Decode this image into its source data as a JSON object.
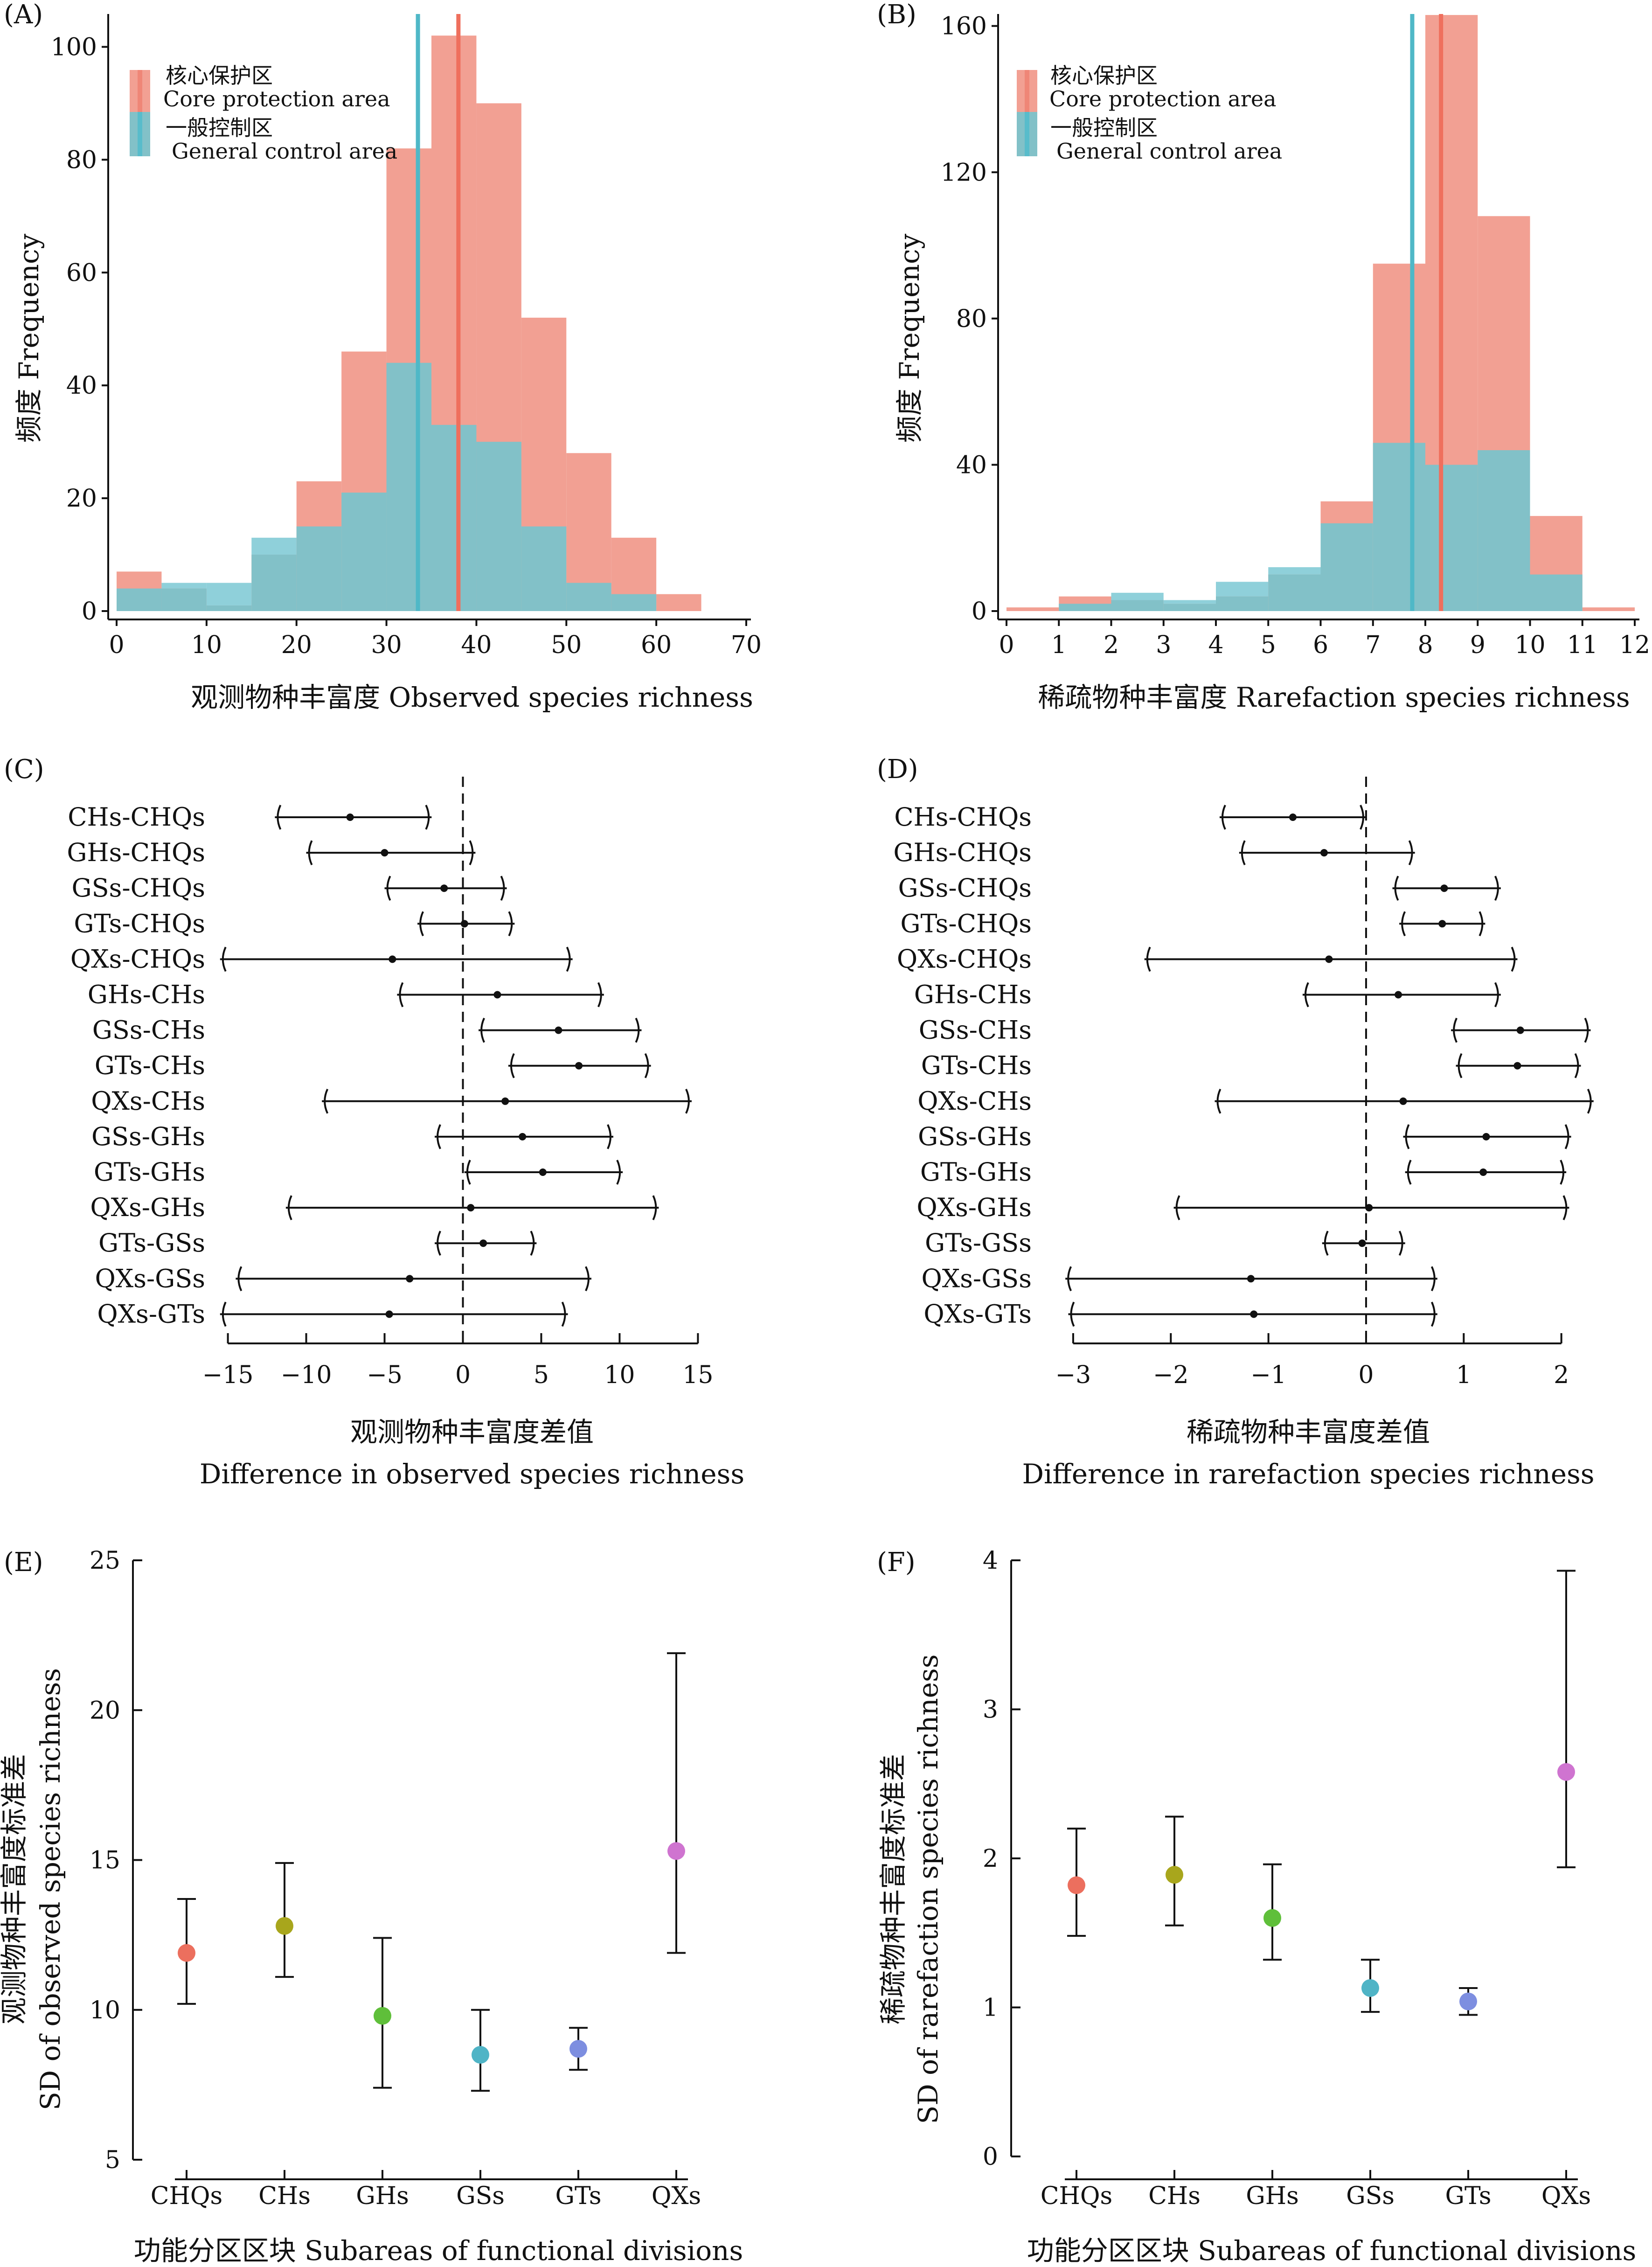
{
  "chart_data": [
    {
      "id": "A",
      "panel_label": "(A)",
      "type": "histogram",
      "xlabel": "观测物种丰富度 Observed species richness",
      "ylabel": "频度 Frequency",
      "xlim": [
        0,
        70
      ],
      "ylim": [
        0,
        105
      ],
      "xticks": [
        "0",
        "10",
        "20",
        "30",
        "40",
        "50",
        "60",
        "70"
      ],
      "yticks": [
        "0",
        "20",
        "40",
        "60",
        "80",
        "100"
      ],
      "bin_edges": [
        0,
        5,
        10,
        15,
        20,
        25,
        30,
        35,
        40,
        45,
        50,
        55,
        60,
        65
      ],
      "legend": {
        "placement": "top-left",
        "entries": [
          {
            "label_cn": "核心保护区",
            "label_en": "Core protection area",
            "color": "#ef8677"
          },
          {
            "label_cn": "一般控制区",
            "label_en": "General control area",
            "color": "#58bccb"
          }
        ]
      },
      "series": [
        {
          "name": "核心保护区 Core protection area",
          "color": "#f2a093",
          "counts": [
            7,
            4,
            1,
            10,
            23,
            46,
            82,
            102,
            90,
            52,
            28,
            13,
            3
          ],
          "mean": 38
        },
        {
          "name": "一般控制区 General control area",
          "color": "#82c1c8",
          "counts": [
            4,
            5,
            5,
            13,
            15,
            21,
            44,
            33,
            30,
            15,
            5,
            3,
            0
          ],
          "mean": 33.5
        }
      ]
    },
    {
      "id": "B",
      "panel_label": "(B)",
      "type": "histogram",
      "xlabel": "稀疏物种丰富度 Rarefaction species richness",
      "ylabel": "频度 Frequency",
      "xlim": [
        0,
        12
      ],
      "ylim": [
        0,
        162
      ],
      "xticks": [
        "0",
        "1",
        "2",
        "3",
        "4",
        "5",
        "6",
        "7",
        "8",
        "9",
        "10",
        "11",
        "12"
      ],
      "yticks": [
        "0",
        "40",
        "80",
        "120",
        "160"
      ],
      "bin_edges": [
        0,
        1,
        2,
        3,
        4,
        5,
        6,
        7,
        8,
        9,
        10,
        11,
        12
      ],
      "legend": {
        "placement": "top-left",
        "entries": [
          {
            "label_cn": "核心保护区",
            "label_en": "Core protection area",
            "color": "#ef8677"
          },
          {
            "label_cn": "一般控制区",
            "label_en": "General control area",
            "color": "#58bccb"
          }
        ]
      },
      "series": [
        {
          "name": "核心保护区 Core protection area",
          "color": "#f2a093",
          "counts": [
            1,
            4,
            3,
            2,
            4,
            10,
            30,
            95,
            163,
            108,
            26,
            1
          ],
          "mean": 8.3
        },
        {
          "name": "一般控制区 General control area",
          "color": "#82c1c8",
          "counts": [
            0,
            2,
            5,
            3,
            8,
            12,
            24,
            46,
            40,
            44,
            10,
            0
          ],
          "mean": 7.75
        }
      ]
    },
    {
      "id": "C",
      "panel_label": "(C)",
      "type": "interval",
      "xlabel_cn": "观测物种丰富度差值",
      "xlabel_en": "Difference in observed species richness",
      "xlim": [
        -16,
        16
      ],
      "xticks": [
        "−15",
        "−10",
        "−5",
        "0",
        "5",
        "10",
        "15"
      ],
      "tick_values": [
        -15,
        -10,
        -5,
        0,
        5,
        10,
        15
      ],
      "rows": [
        {
          "label": "CHs-CHQs",
          "est": -7.2,
          "lo": -12,
          "hi": -2
        },
        {
          "label": "GHs-CHQs",
          "est": -5,
          "lo": -10,
          "hi": 0.8
        },
        {
          "label": "GSs-CHQs",
          "est": -1.2,
          "lo": -5,
          "hi": 2.8
        },
        {
          "label": "GTs-CHQs",
          "est": 0.1,
          "lo": -2.9,
          "hi": 3.3
        },
        {
          "label": "QXs-CHQs",
          "est": -4.5,
          "lo": -15.5,
          "hi": 7
        },
        {
          "label": "GHs-CHs",
          "est": 2.2,
          "lo": -4.2,
          "hi": 9
        },
        {
          "label": "GSs-CHs",
          "est": 6.1,
          "lo": 1,
          "hi": 11.4
        },
        {
          "label": "GTs-CHs",
          "est": 7.4,
          "lo": 2.9,
          "hi": 12
        },
        {
          "label": "QXs-CHs",
          "est": 2.7,
          "lo": -9,
          "hi": 14.6
        },
        {
          "label": "GSs-GHs",
          "est": 3.8,
          "lo": -1.8,
          "hi": 9.6
        },
        {
          "label": "GTs-GHs",
          "est": 5.1,
          "lo": 0.1,
          "hi": 10.2
        },
        {
          "label": "QXs-GHs",
          "est": 0.5,
          "lo": -11.3,
          "hi": 12.5
        },
        {
          "label": "GTs-GSs",
          "est": 1.3,
          "lo": -1.8,
          "hi": 4.7
        },
        {
          "label": "QXs-GSs",
          "est": -3.4,
          "lo": -14.5,
          "hi": 8.2
        },
        {
          "label": "QXs-GTs",
          "est": -4.7,
          "lo": -15.5,
          "hi": 6.7
        }
      ]
    },
    {
      "id": "D",
      "panel_label": "(D)",
      "type": "interval",
      "xlabel_cn": "稀疏物种丰富度差值",
      "xlabel_en": "Difference in rarefaction species richness",
      "xlim": [
        -3.1,
        2.25
      ],
      "xticks": [
        "−3",
        "−2",
        "−1",
        "0",
        "1",
        "2"
      ],
      "tick_values": [
        -3,
        -2,
        -1,
        0,
        1,
        2
      ],
      "rows": [
        {
          "label": "CHs-CHQs",
          "est": -0.75,
          "lo": -1.5,
          "hi": 0
        },
        {
          "label": "GHs-CHQs",
          "est": -0.43,
          "lo": -1.3,
          "hi": 0.5
        },
        {
          "label": "GSs-CHQs",
          "est": 0.8,
          "lo": 0.27,
          "hi": 1.38
        },
        {
          "label": "GTs-CHQs",
          "est": 0.78,
          "lo": 0.34,
          "hi": 1.22
        },
        {
          "label": "QXs-CHQs",
          "est": -0.38,
          "lo": -2.27,
          "hi": 1.55
        },
        {
          "label": "GHs-CHs",
          "est": 0.33,
          "lo": -0.65,
          "hi": 1.38
        },
        {
          "label": "GSs-CHs",
          "est": 1.58,
          "lo": 0.87,
          "hi": 2.3
        },
        {
          "label": "GTs-CHs",
          "est": 1.55,
          "lo": 0.92,
          "hi": 2.2
        },
        {
          "label": "QXs-CHs",
          "est": 0.38,
          "lo": -1.55,
          "hi": 2.33
        },
        {
          "label": "GSs-GHs",
          "est": 1.23,
          "lo": 0.38,
          "hi": 2.1
        },
        {
          "label": "GTs-GHs",
          "est": 1.2,
          "lo": 0.4,
          "hi": 2.05
        },
        {
          "label": "QXs-GHs",
          "est": 0.03,
          "lo": -1.97,
          "hi": 2.08
        },
        {
          "label": "GTs-GSs",
          "est": -0.04,
          "lo": -0.45,
          "hi": 0.4
        },
        {
          "label": "QXs-GSs",
          "est": -1.18,
          "lo": -3.08,
          "hi": 0.73
        },
        {
          "label": "QXs-GTs",
          "est": -1.15,
          "lo": -3.05,
          "hi": 0.73
        }
      ]
    },
    {
      "id": "E",
      "panel_label": "(E)",
      "type": "errorbar",
      "xlabel": "功能分区区块 Subareas of functional divisions",
      "ylabel_cn": "观测物种丰富度标准差",
      "ylabel_en": "SD of observed species richness",
      "ylim": [
        5,
        25
      ],
      "yticks": [
        "5",
        "10",
        "15",
        "20",
        "25"
      ],
      "tick_values": [
        5,
        10,
        15,
        20,
        25
      ],
      "categories": [
        "CHQs",
        "CHs",
        "GHs",
        "GSs",
        "GTs",
        "QXs"
      ],
      "points": [
        {
          "category": "CHQs",
          "value": 11.9,
          "lo": 10.2,
          "hi": 13.7,
          "color": "#ec6f5e"
        },
        {
          "category": "CHs",
          "value": 12.8,
          "lo": 11.1,
          "hi": 14.9,
          "color": "#a8a61c"
        },
        {
          "category": "GHs",
          "value": 9.8,
          "lo": 7.4,
          "hi": 12.4,
          "color": "#5fbf3a"
        },
        {
          "category": "GSs",
          "value": 8.5,
          "lo": 7.3,
          "hi": 10.0,
          "color": "#4fb4c6"
        },
        {
          "category": "GTs",
          "value": 8.7,
          "lo": 8.0,
          "hi": 9.4,
          "color": "#7d8ee0"
        },
        {
          "category": "QXs",
          "value": 15.3,
          "lo": 11.9,
          "hi": 21.9,
          "color": "#cf74d0"
        }
      ]
    },
    {
      "id": "F",
      "panel_label": "(F)",
      "type": "errorbar",
      "xlabel": "功能分区区块 Subareas of functional divisions",
      "ylabel_cn": "稀疏物种丰富度标准差",
      "ylabel_en": "SD of rarefaction species richness",
      "ylim": [
        0,
        4
      ],
      "yticks": [
        "0",
        "1",
        "2",
        "3",
        "4"
      ],
      "tick_values": [
        0,
        1,
        2,
        3,
        4
      ],
      "categories": [
        "CHQs",
        "CHs",
        "GHs",
        "GSs",
        "GTs",
        "QXs"
      ],
      "points": [
        {
          "category": "CHQs",
          "value": 1.82,
          "lo": 1.48,
          "hi": 2.2,
          "color": "#ec6f5e"
        },
        {
          "category": "CHs",
          "value": 1.89,
          "lo": 1.55,
          "hi": 2.28,
          "color": "#a8a61c"
        },
        {
          "category": "GHs",
          "value": 1.6,
          "lo": 1.32,
          "hi": 1.96,
          "color": "#5fbf3a"
        },
        {
          "category": "GSs",
          "value": 1.13,
          "lo": 0.97,
          "hi": 1.32,
          "color": "#4fb4c6"
        },
        {
          "category": "GTs",
          "value": 1.04,
          "lo": 0.95,
          "hi": 1.13,
          "color": "#7d8ee0"
        },
        {
          "category": "QXs",
          "value": 2.58,
          "lo": 1.94,
          "hi": 3.93,
          "color": "#cf74d0"
        }
      ]
    }
  ]
}
